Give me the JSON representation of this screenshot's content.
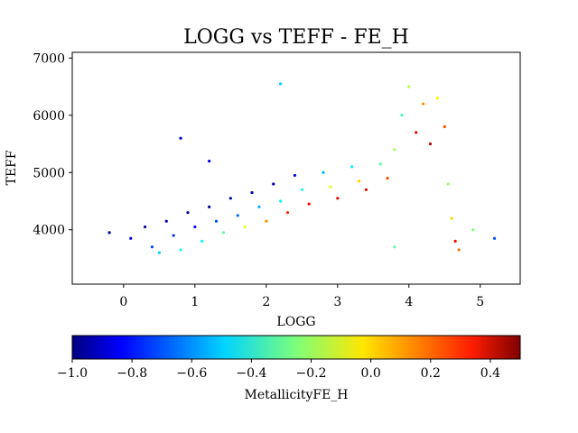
{
  "chart_data": {
    "type": "scatter",
    "title": "LOGG vs TEFF - FE_H",
    "xlabel": "LOGG",
    "ylabel": "TEFF",
    "xlim": [
      -0.72,
      5.56
    ],
    "ylim": [
      3050,
      7100
    ],
    "xticks": [
      0,
      1,
      2,
      3,
      4,
      5
    ],
    "yticks": [
      4000,
      5000,
      6000,
      7000
    ],
    "grid": false,
    "legend": "none",
    "colormap": "jet",
    "colorbar": {
      "label": "MetallicityFE_H",
      "orientation": "horizontal",
      "placement": "bottom",
      "range": [
        -1.0,
        0.5
      ],
      "ticks": [
        -1.0,
        -0.8,
        -0.6,
        -0.4,
        -0.2,
        0.0,
        0.2,
        0.4
      ],
      "tick_labels": [
        "−1.0",
        "−0.8",
        "−0.6",
        "−0.4",
        "−0.2",
        "0.0",
        "0.2",
        "0.4"
      ]
    },
    "points": [
      {
        "x": -0.2,
        "y": 3950,
        "c": -0.95
      },
      {
        "x": 0.1,
        "y": 3850,
        "c": -0.85
      },
      {
        "x": 0.3,
        "y": 4050,
        "c": -0.95
      },
      {
        "x": 0.4,
        "y": 3700,
        "c": -0.7
      },
      {
        "x": 0.5,
        "y": 3600,
        "c": -0.5
      },
      {
        "x": 0.6,
        "y": 4150,
        "c": -0.95
      },
      {
        "x": 0.7,
        "y": 3900,
        "c": -0.75
      },
      {
        "x": 0.8,
        "y": 3650,
        "c": -0.4
      },
      {
        "x": 0.9,
        "y": 4300,
        "c": -0.95
      },
      {
        "x": 1.0,
        "y": 4050,
        "c": -0.8
      },
      {
        "x": 1.1,
        "y": 3800,
        "c": -0.45
      },
      {
        "x": 1.2,
        "y": 4400,
        "c": -0.95
      },
      {
        "x": 1.3,
        "y": 4150,
        "c": -0.7
      },
      {
        "x": 1.4,
        "y": 3950,
        "c": -0.3
      },
      {
        "x": 1.5,
        "y": 4550,
        "c": -0.95
      },
      {
        "x": 1.6,
        "y": 4250,
        "c": -0.65
      },
      {
        "x": 1.7,
        "y": 4050,
        "c": -0.1
      },
      {
        "x": 1.8,
        "y": 4650,
        "c": -0.9
      },
      {
        "x": 1.9,
        "y": 4400,
        "c": -0.55
      },
      {
        "x": 2.0,
        "y": 4150,
        "c": 0.1
      },
      {
        "x": 2.1,
        "y": 4800,
        "c": -0.9
      },
      {
        "x": 2.2,
        "y": 4500,
        "c": -0.45
      },
      {
        "x": 2.3,
        "y": 4300,
        "c": 0.25
      },
      {
        "x": 2.4,
        "y": 4950,
        "c": -0.85
      },
      {
        "x": 2.5,
        "y": 4700,
        "c": -0.4
      },
      {
        "x": 2.6,
        "y": 4450,
        "c": 0.3
      },
      {
        "x": 2.8,
        "y": 5000,
        "c": -0.55
      },
      {
        "x": 2.9,
        "y": 4750,
        "c": -0.1
      },
      {
        "x": 3.0,
        "y": 4550,
        "c": 0.35
      },
      {
        "x": 3.2,
        "y": 5100,
        "c": -0.45
      },
      {
        "x": 3.3,
        "y": 4850,
        "c": 0.0
      },
      {
        "x": 3.4,
        "y": 4700,
        "c": 0.35
      },
      {
        "x": 3.6,
        "y": 5150,
        "c": -0.3
      },
      {
        "x": 3.7,
        "y": 4900,
        "c": 0.2
      },
      {
        "x": 3.8,
        "y": 5400,
        "c": -0.2
      },
      {
        "x": 3.9,
        "y": 6000,
        "c": -0.35
      },
      {
        "x": 4.0,
        "y": 6500,
        "c": -0.15
      },
      {
        "x": 4.1,
        "y": 5700,
        "c": 0.3
      },
      {
        "x": 4.2,
        "y": 6200,
        "c": 0.1
      },
      {
        "x": 4.3,
        "y": 5500,
        "c": 0.4
      },
      {
        "x": 4.4,
        "y": 6300,
        "c": -0.05
      },
      {
        "x": 4.5,
        "y": 5800,
        "c": 0.2
      },
      {
        "x": 4.55,
        "y": 4800,
        "c": -0.2
      },
      {
        "x": 4.6,
        "y": 4200,
        "c": 0.0
      },
      {
        "x": 4.65,
        "y": 3800,
        "c": 0.3
      },
      {
        "x": 4.7,
        "y": 3650,
        "c": 0.15
      },
      {
        "x": 3.8,
        "y": 3700,
        "c": -0.3
      },
      {
        "x": 4.9,
        "y": 4000,
        "c": -0.25
      },
      {
        "x": 5.2,
        "y": 3850,
        "c": -0.7
      },
      {
        "x": 0.8,
        "y": 5600,
        "c": -0.9
      },
      {
        "x": 1.2,
        "y": 5200,
        "c": -0.85
      },
      {
        "x": 2.2,
        "y": 6550,
        "c": -0.5
      }
    ]
  }
}
